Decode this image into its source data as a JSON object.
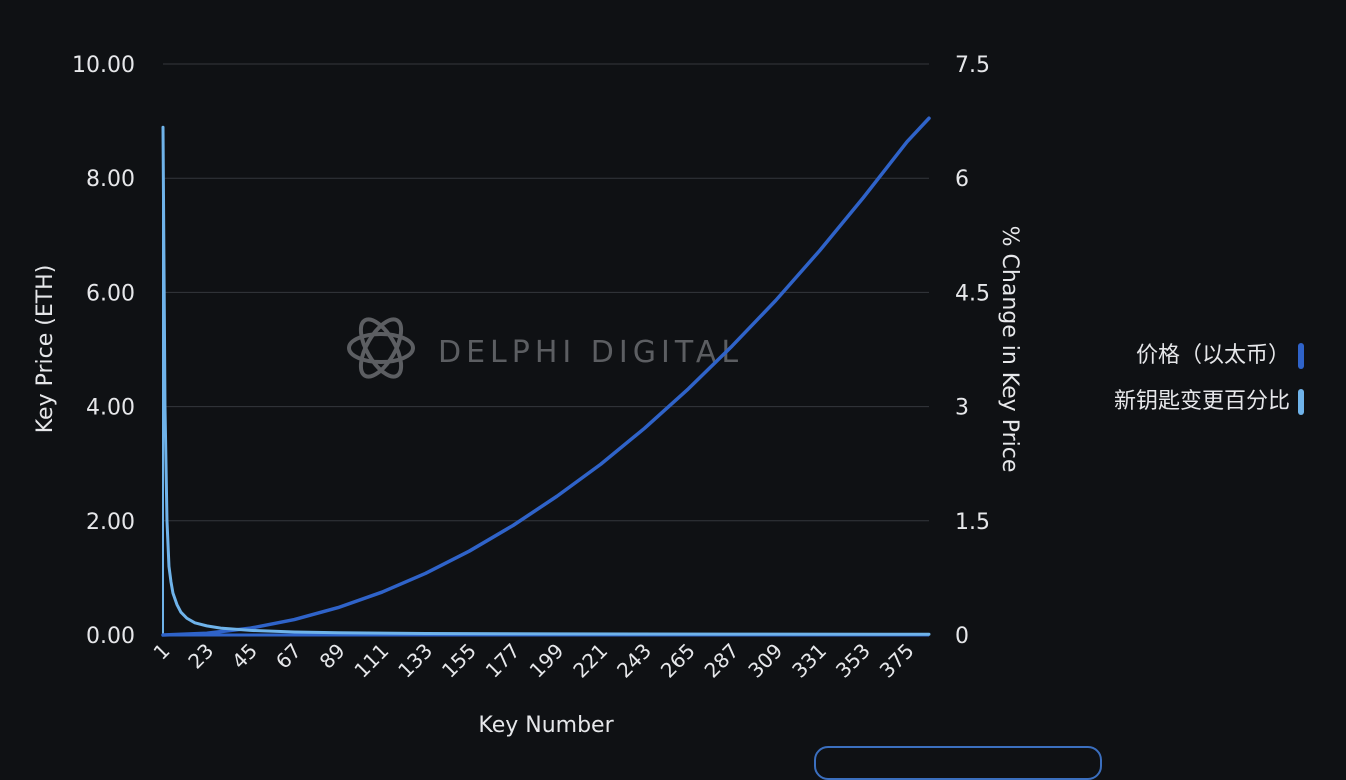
{
  "chart_data": {
    "type": "line",
    "xlabel": "Key Number",
    "ylabel_left": "Key Price (ETH)",
    "ylabel_right": "% Change in Key Price",
    "x_range": [
      1,
      386
    ],
    "x_tick_labels": [
      "1",
      "23",
      "45",
      "67",
      "89",
      "111",
      "133",
      "155",
      "177",
      "199",
      "221",
      "243",
      "265",
      "287",
      "309",
      "331",
      "353",
      "375"
    ],
    "y_left_range": [
      0,
      10
    ],
    "y_left_ticks": [
      "0.00",
      "2.00",
      "4.00",
      "6.00",
      "8.00",
      "10.00"
    ],
    "y_right_range": [
      0,
      7.5
    ],
    "y_right_ticks": [
      "0",
      "1.5",
      "3",
      "4.5",
      "6",
      "7.5"
    ],
    "grid": true,
    "legend_position": "right",
    "series": [
      {
        "name": "价格（以太币）",
        "axis": "left",
        "color": "#2f63c9",
        "points": [
          [
            1,
            0
          ],
          [
            23,
            0.03
          ],
          [
            45,
            0.12
          ],
          [
            67,
            0.27
          ],
          [
            89,
            0.48
          ],
          [
            111,
            0.75
          ],
          [
            133,
            1.08
          ],
          [
            155,
            1.47
          ],
          [
            177,
            1.92
          ],
          [
            199,
            2.43
          ],
          [
            221,
            2.99
          ],
          [
            243,
            3.62
          ],
          [
            265,
            4.31
          ],
          [
            287,
            5.06
          ],
          [
            309,
            5.86
          ],
          [
            331,
            6.73
          ],
          [
            353,
            7.66
          ],
          [
            375,
            8.64
          ],
          [
            386,
            9.05
          ]
        ]
      },
      {
        "name": "新钥匙变更百分比",
        "axis": "right",
        "color": "#6fb3ea",
        "points": [
          [
            1,
            6.67
          ],
          [
            2,
            3.0
          ],
          [
            3,
            1.5
          ],
          [
            4,
            0.9
          ],
          [
            5,
            0.7
          ],
          [
            6,
            0.55
          ],
          [
            8,
            0.4
          ],
          [
            10,
            0.3
          ],
          [
            13,
            0.22
          ],
          [
            17,
            0.16
          ],
          [
            23,
            0.12
          ],
          [
            30,
            0.09
          ],
          [
            45,
            0.06
          ],
          [
            67,
            0.04
          ],
          [
            89,
            0.03
          ],
          [
            133,
            0.02
          ],
          [
            199,
            0.015
          ],
          [
            287,
            0.011
          ],
          [
            386,
            0.009
          ]
        ]
      }
    ]
  },
  "watermark": "DELPHI DIGITAL"
}
